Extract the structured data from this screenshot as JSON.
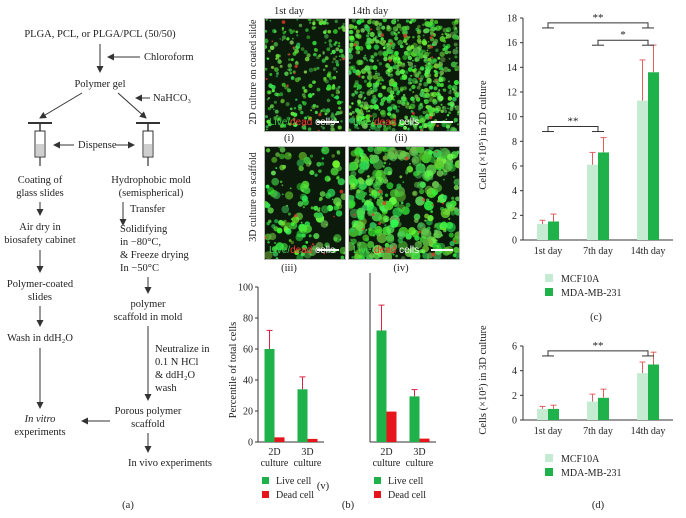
{
  "flow": {
    "start": "PLGA, PCL, or PLGA/PCL (50/50)",
    "chloroform": "Chloroform",
    "gel": "Polymer gel",
    "nahco3": "NaHCO₃",
    "dispense": "Dispense",
    "coating1": "Coating of",
    "coating2": "glass slides",
    "mold1": "Hydrophobic mold",
    "mold2": "(semispherical)",
    "transfer": "Transfer",
    "airdry1": "Air dry in",
    "airdry2": "biosafety cabinet",
    "solid1": "Solidifying",
    "solid2": "in −80°C,",
    "solid3": "& Freeze drying",
    "solid4": "In −50°C",
    "coated1": "Polymer-coated",
    "coated2": "slides",
    "scaf1": "polymer",
    "scaf2": "scaffold in mold",
    "wash": "Wash in ddH₂O",
    "neut1": "Neutralize in",
    "neut2": "0.1 N HCl",
    "neut3": "& ddH₂O",
    "neut4": "wash",
    "porous1": "Porous polymer",
    "porous2": "scaffold",
    "invitro1": "In vitro",
    "invitro2": "experiments",
    "invivo": "In vivo experiments",
    "panel": "(a)"
  },
  "micro": {
    "col1": "1st day",
    "col2": "14th day",
    "row1": "2D culture on coated slide",
    "row2": "3D culture on scaffold",
    "live": "Live/",
    "dead": "dead",
    "cells": " cells",
    "i": "(i)",
    "ii": "(ii)",
    "iii": "(iii)",
    "iv": "(iv)"
  },
  "panel_b_label": "(b)",
  "panel_v_label": "(v)",
  "panel_c_label": "(c)",
  "panel_d_label": "(d)",
  "colors": {
    "live": "#1fb24b",
    "dead": "#e8141b",
    "mcf": "#c5ecd3",
    "mda": "#1fb24b",
    "micro_bg": "#0b1a0b"
  },
  "chart_data": [
    {
      "id": "v_left",
      "type": "bar",
      "ylabel": "Percentile of total cells",
      "categories": [
        "2D culture",
        "3D culture"
      ],
      "ylim": [
        0,
        100
      ],
      "yticks": [
        0,
        20,
        40,
        60,
        80,
        100
      ],
      "series": [
        {
          "name": "Live cell",
          "values": [
            60,
            34
          ],
          "errors": [
            12,
            8
          ]
        },
        {
          "name": "Dead cell",
          "values": [
            3,
            2
          ],
          "errors": [
            0,
            0
          ]
        }
      ],
      "legend": [
        "Live cell",
        "Dead cell"
      ]
    },
    {
      "id": "v_right",
      "type": "bar",
      "categories": [
        "2D culture",
        "3D culture"
      ],
      "ylim": [
        0,
        100
      ],
      "series": [
        {
          "name": "Live cell",
          "values": [
            66,
            27
          ],
          "errors": [
            15,
            4
          ]
        },
        {
          "name": "Dead cell",
          "values": [
            18,
            2
          ],
          "errors": [
            0,
            0
          ]
        }
      ],
      "legend": [
        "Live cell",
        "Dead cell"
      ]
    },
    {
      "id": "c",
      "type": "bar",
      "ylabel": "Cells (×10⁵) in 2D culture",
      "categories": [
        "1st day",
        "7th day",
        "14th day"
      ],
      "ylim": [
        0,
        18
      ],
      "yticks": [
        0,
        2,
        4,
        6,
        8,
        10,
        12,
        14,
        16,
        18
      ],
      "series": [
        {
          "name": "MCF10A",
          "values": [
            1.3,
            6.1,
            11.3
          ],
          "errors": [
            0.3,
            1.0,
            3.3
          ]
        },
        {
          "name": "MDA-MB-231",
          "values": [
            1.5,
            7.1,
            13.6
          ],
          "errors": [
            0.6,
            1.2,
            2.2
          ]
        }
      ],
      "significance": [
        "**",
        "**",
        "*"
      ]
    },
    {
      "id": "d",
      "type": "bar",
      "ylabel": "Cells (×10⁵) in 3D culture",
      "categories": [
        "1st day",
        "7th day",
        "14th day"
      ],
      "ylim": [
        0,
        6
      ],
      "yticks": [
        0,
        2,
        4,
        6
      ],
      "series": [
        {
          "name": "MCF10A",
          "values": [
            0.9,
            1.5,
            3.8
          ],
          "errors": [
            0.2,
            0.6,
            0.9
          ]
        },
        {
          "name": "MDA-MB-231",
          "values": [
            0.9,
            1.8,
            4.5
          ],
          "errors": [
            0.3,
            0.7,
            1.0
          ]
        }
      ],
      "significance": [
        "**"
      ]
    }
  ]
}
